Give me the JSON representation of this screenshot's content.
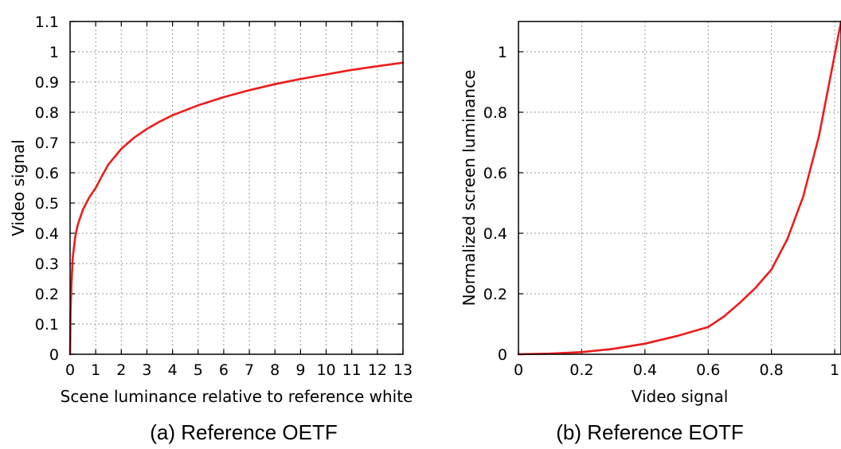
{
  "chart_data": [
    {
      "type": "line",
      "caption": "(a) Reference OETF",
      "xlabel": "Scene luminance relative to reference white",
      "ylabel": "Video signal",
      "xlim": [
        0,
        13
      ],
      "ylim": [
        0,
        1.1
      ],
      "xticks": [
        "0",
        "1",
        "2",
        "3",
        "4",
        "5",
        "6",
        "7",
        "8",
        "9",
        "10",
        "11",
        "12",
        "13"
      ],
      "yticks": [
        "0",
        "0.1",
        "0.2",
        "0.3",
        "0.4",
        "0.5",
        "0.6",
        "0.7",
        "0.8",
        "0.9",
        "1",
        "1.1"
      ],
      "grid": true,
      "color": "#ee1c1c",
      "series": [
        {
          "x": [
            0,
            0.02,
            0.05,
            0.1,
            0.2,
            0.3,
            0.5,
            0.75,
            1,
            1.25,
            1.5,
            2,
            2.5,
            3,
            3.5,
            4,
            5,
            6,
            7,
            8,
            9,
            10,
            11,
            12,
            13
          ],
          "y": [
            0,
            0.141,
            0.224,
            0.316,
            0.387,
            0.428,
            0.478,
            0.519,
            0.55,
            0.59,
            0.628,
            0.679,
            0.716,
            0.745,
            0.769,
            0.79,
            0.823,
            0.85,
            0.873,
            0.893,
            0.91,
            0.925,
            0.94,
            0.952,
            0.964
          ]
        }
      ]
    },
    {
      "type": "line",
      "caption": "(b) Reference EOTF",
      "xlabel": "Video signal",
      "ylabel": "Normalized screen luminance",
      "xlim": [
        0,
        1.02
      ],
      "ylim": [
        0,
        1.1
      ],
      "xticks": [
        "0",
        "0.2",
        "0.4",
        "0.6",
        "0.8",
        "1"
      ],
      "yticks": [
        "0",
        "0.2",
        "0.4",
        "0.6",
        "0.8",
        "1"
      ],
      "grid": true,
      "color": "#ee1c1c",
      "series": [
        {
          "x": [
            0,
            0.1,
            0.2,
            0.3,
            0.4,
            0.5,
            0.6,
            0.65,
            0.7,
            0.75,
            0.8,
            0.85,
            0.9,
            0.95,
            1.0,
            1.02
          ],
          "y": [
            0,
            0.002,
            0.007,
            0.018,
            0.035,
            0.06,
            0.09,
            0.125,
            0.17,
            0.22,
            0.28,
            0.38,
            0.52,
            0.72,
            0.99,
            1.1
          ]
        }
      ]
    }
  ]
}
